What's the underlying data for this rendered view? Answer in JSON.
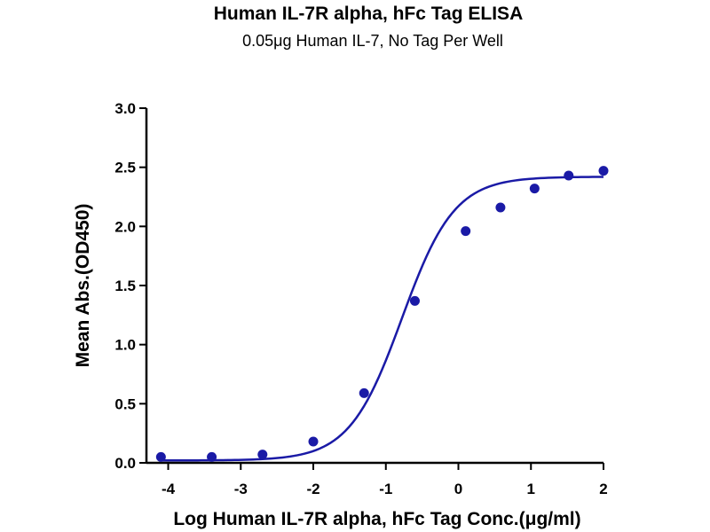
{
  "chart_data": {
    "type": "scatter",
    "title": "Human IL-7R alpha, hFc Tag ELISA",
    "subtitle": "0.05μg Human IL-7, No Tag Per Well",
    "xlabel": "Log Human IL-7R alpha, hFc Tag Conc.(μg/ml)",
    "ylabel": "Mean Abs.(OD450)",
    "xlim": [
      -4.3,
      2.0
    ],
    "ylim": [
      0.0,
      3.0
    ],
    "xticks": [
      -4,
      -3,
      -2,
      -1,
      0,
      1,
      2
    ],
    "yticks": [
      0.0,
      0.5,
      1.0,
      1.5,
      2.0,
      2.5,
      3.0
    ],
    "xtick_labels": [
      "-4",
      "-3",
      "-2",
      "-1",
      "0",
      "1",
      "2"
    ],
    "ytick_labels": [
      "0.0",
      "0.5",
      "1.0",
      "1.5",
      "2.0",
      "2.5",
      "3.0"
    ],
    "grid": false,
    "series": [
      {
        "color": "#1a1aa6",
        "x": [
          -4.1,
          -3.4,
          -2.7,
          -2.0,
          -1.3,
          -0.6,
          0.1,
          0.58,
          1.05,
          1.52,
          2.0
        ],
        "y": [
          0.05,
          0.05,
          0.07,
          0.18,
          0.59,
          1.37,
          1.96,
          2.16,
          2.32,
          2.43,
          2.47
        ]
      }
    ],
    "fit": {
      "type": "4PL",
      "color": "#1a1aa6",
      "bottom": 0.02,
      "top": 2.42,
      "logEC50": -0.78,
      "hill_slope": 1.2
    }
  }
}
